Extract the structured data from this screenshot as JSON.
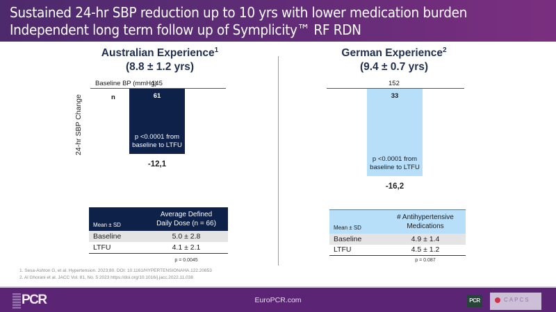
{
  "header": {
    "line1": "Sustained 24-hr SBP reduction up to 10 yrs with lower medication burden",
    "line2": "Independent long term follow up of Symplicity™ RF RDN"
  },
  "colors": {
    "header_start": "#4d2a6c",
    "header_end": "#7b2e7f",
    "australian_bar": "#0d2149",
    "german_bar": "#b8dffa",
    "footer": "#5b2474"
  },
  "labels": {
    "baseline_bp": "Baseline BP (mmHg)",
    "n": "n",
    "y_axis": "24-hr SBP Change"
  },
  "chart_data": {
    "type": "bar",
    "title": "24-hr SBP Change",
    "ylabel": "24-hr SBP Change",
    "xlabel": "",
    "ylim": [
      -18,
      0
    ],
    "grid": false,
    "categories": [
      "Australian Experience",
      "German Experience"
    ],
    "values": [
      -12.1,
      -16.2
    ],
    "value_labels": [
      "-12,1",
      "-16,2"
    ],
    "baseline_bp": [
      145,
      152
    ],
    "n": [
      61,
      33
    ],
    "p_annotations": [
      "p <0.0001 from baseline to LTFU",
      "p <0.0001 from baseline to LTFU"
    ]
  },
  "australian": {
    "title": "Australian Experience",
    "sup": "1",
    "subtitle": "(8.8 ± 1.2 yrs)",
    "baseline_bp": "145",
    "n": "61",
    "bar_p_line1": "p <0.0001 from",
    "bar_p_line2": "baseline to LTFU",
    "value": "-12,1",
    "table": {
      "col0": "Mean ± SD",
      "col1_line1": "Average Defined",
      "col1_line2": "Daily Dose (n = 66)",
      "rows": [
        {
          "label": "Baseline",
          "value": "5.0 ± 2.8"
        },
        {
          "label": "LTFU",
          "value": "4.1 ± 2.1"
        }
      ],
      "p": "p = 0.0045"
    }
  },
  "german": {
    "title": "German Experience",
    "sup": "2",
    "subtitle": "(9.4 ± 0.7 yrs)",
    "baseline_bp": "152",
    "n": "33",
    "bar_p_line1": "p <0.0001 from",
    "bar_p_line2": "baseline to LTFU",
    "value": "-16,2",
    "table": {
      "col0": "Mean ± SD",
      "col1_line1": "# Antihypertensive",
      "col1_line2": "Medications",
      "rows": [
        {
          "label": "Baseline",
          "value": "4.9 ± 1.4"
        },
        {
          "label": "LTFU",
          "value": "4.5 ± 1.2"
        }
      ],
      "p": "p = 0.087"
    }
  },
  "references": [
    "1. Sesa-Ashton G, et al. Hypertension. 2023;80. DOI: 10.1161/HYPERTENSIONAHA.122.20853",
    "2. Al Ghorani et al. JACC Vol. 81, No. 5 2023 https://doi.org/10.1016/j.jacc.2022.11.038"
  ],
  "footer": {
    "logo_left": "PCR",
    "url": "EuroPCR.com",
    "logo_right_1": "PCR",
    "logo_right_2": "CAPCS"
  }
}
